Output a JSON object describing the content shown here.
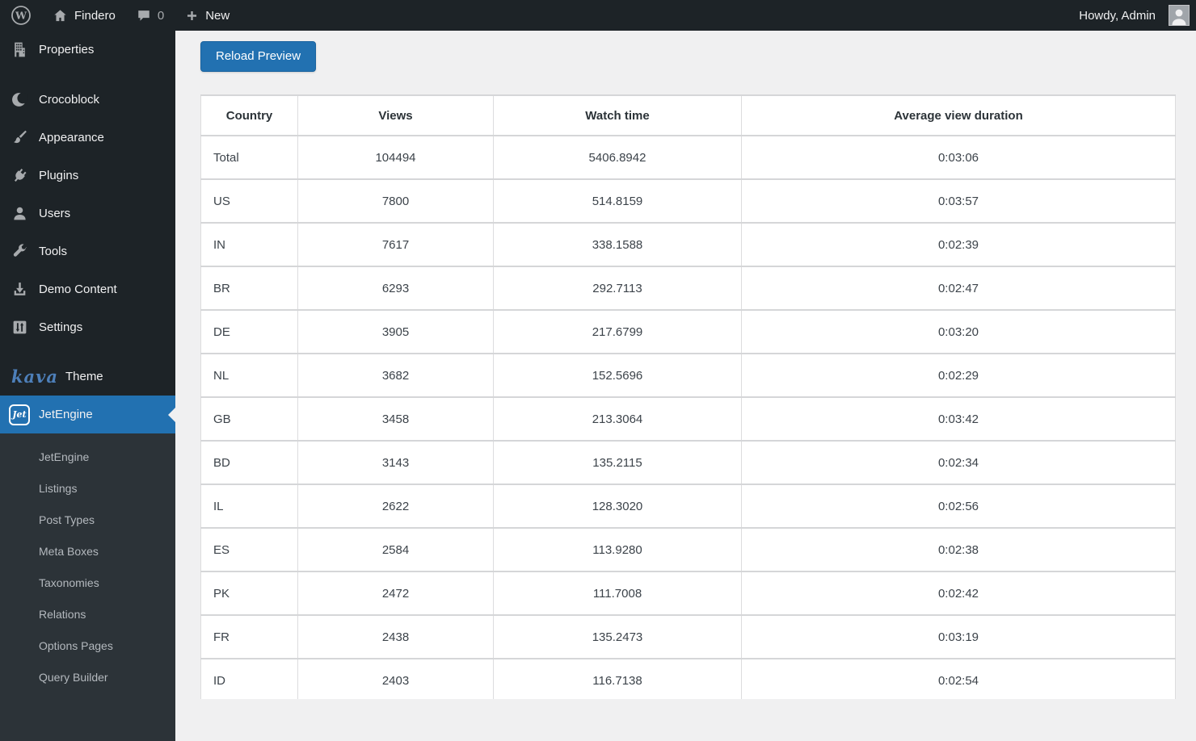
{
  "admin_bar": {
    "wp_logo": "W",
    "site_name": "Findero",
    "comments_count": "0",
    "new_label": "New",
    "howdy": "Howdy, Admin"
  },
  "sidebar": {
    "items": [
      {
        "label": "Properties",
        "icon": "building-icon"
      },
      {
        "label": "Crocoblock",
        "icon": "crocoblock-icon"
      },
      {
        "label": "Appearance",
        "icon": "brush-icon"
      },
      {
        "label": "Plugins",
        "icon": "plugin-icon"
      },
      {
        "label": "Users",
        "icon": "user-icon"
      },
      {
        "label": "Tools",
        "icon": "wrench-icon"
      },
      {
        "label": "Demo Content",
        "icon": "download-icon"
      },
      {
        "label": "Settings",
        "icon": "sliders-icon"
      },
      {
        "label": "Theme",
        "icon": "kava-logo",
        "brand": "kava"
      },
      {
        "label": "JetEngine",
        "icon": "jetengine-icon",
        "active": true
      }
    ],
    "submenu": [
      "JetEngine",
      "Listings",
      "Post Types",
      "Meta Boxes",
      "Taxonomies",
      "Relations",
      "Options Pages",
      "Query Builder"
    ]
  },
  "main": {
    "reload_button": "Reload Preview",
    "table": {
      "headers": [
        "Country",
        "Views",
        "Watch time",
        "Average view duration"
      ],
      "rows": [
        [
          "Total",
          "104494",
          "5406.8942",
          "0:03:06"
        ],
        [
          "US",
          "7800",
          "514.8159",
          "0:03:57"
        ],
        [
          "IN",
          "7617",
          "338.1588",
          "0:02:39"
        ],
        [
          "BR",
          "6293",
          "292.7113",
          "0:02:47"
        ],
        [
          "DE",
          "3905",
          "217.6799",
          "0:03:20"
        ],
        [
          "NL",
          "3682",
          "152.5696",
          "0:02:29"
        ],
        [
          "GB",
          "3458",
          "213.3064",
          "0:03:42"
        ],
        [
          "BD",
          "3143",
          "135.2115",
          "0:02:34"
        ],
        [
          "IL",
          "2622",
          "128.3020",
          "0:02:56"
        ],
        [
          "ES",
          "2584",
          "113.9280",
          "0:02:38"
        ],
        [
          "PK",
          "2472",
          "111.7008",
          "0:02:42"
        ],
        [
          "FR",
          "2438",
          "135.2473",
          "0:03:19"
        ],
        [
          "ID",
          "2403",
          "116.7138",
          "0:02:54"
        ]
      ]
    },
    "colors": {
      "accent_blue": "#2271b1",
      "admin_bar_bg": "#1d2327",
      "submenu_bg": "#2c3338",
      "content_bg": "#f0f0f1"
    }
  }
}
